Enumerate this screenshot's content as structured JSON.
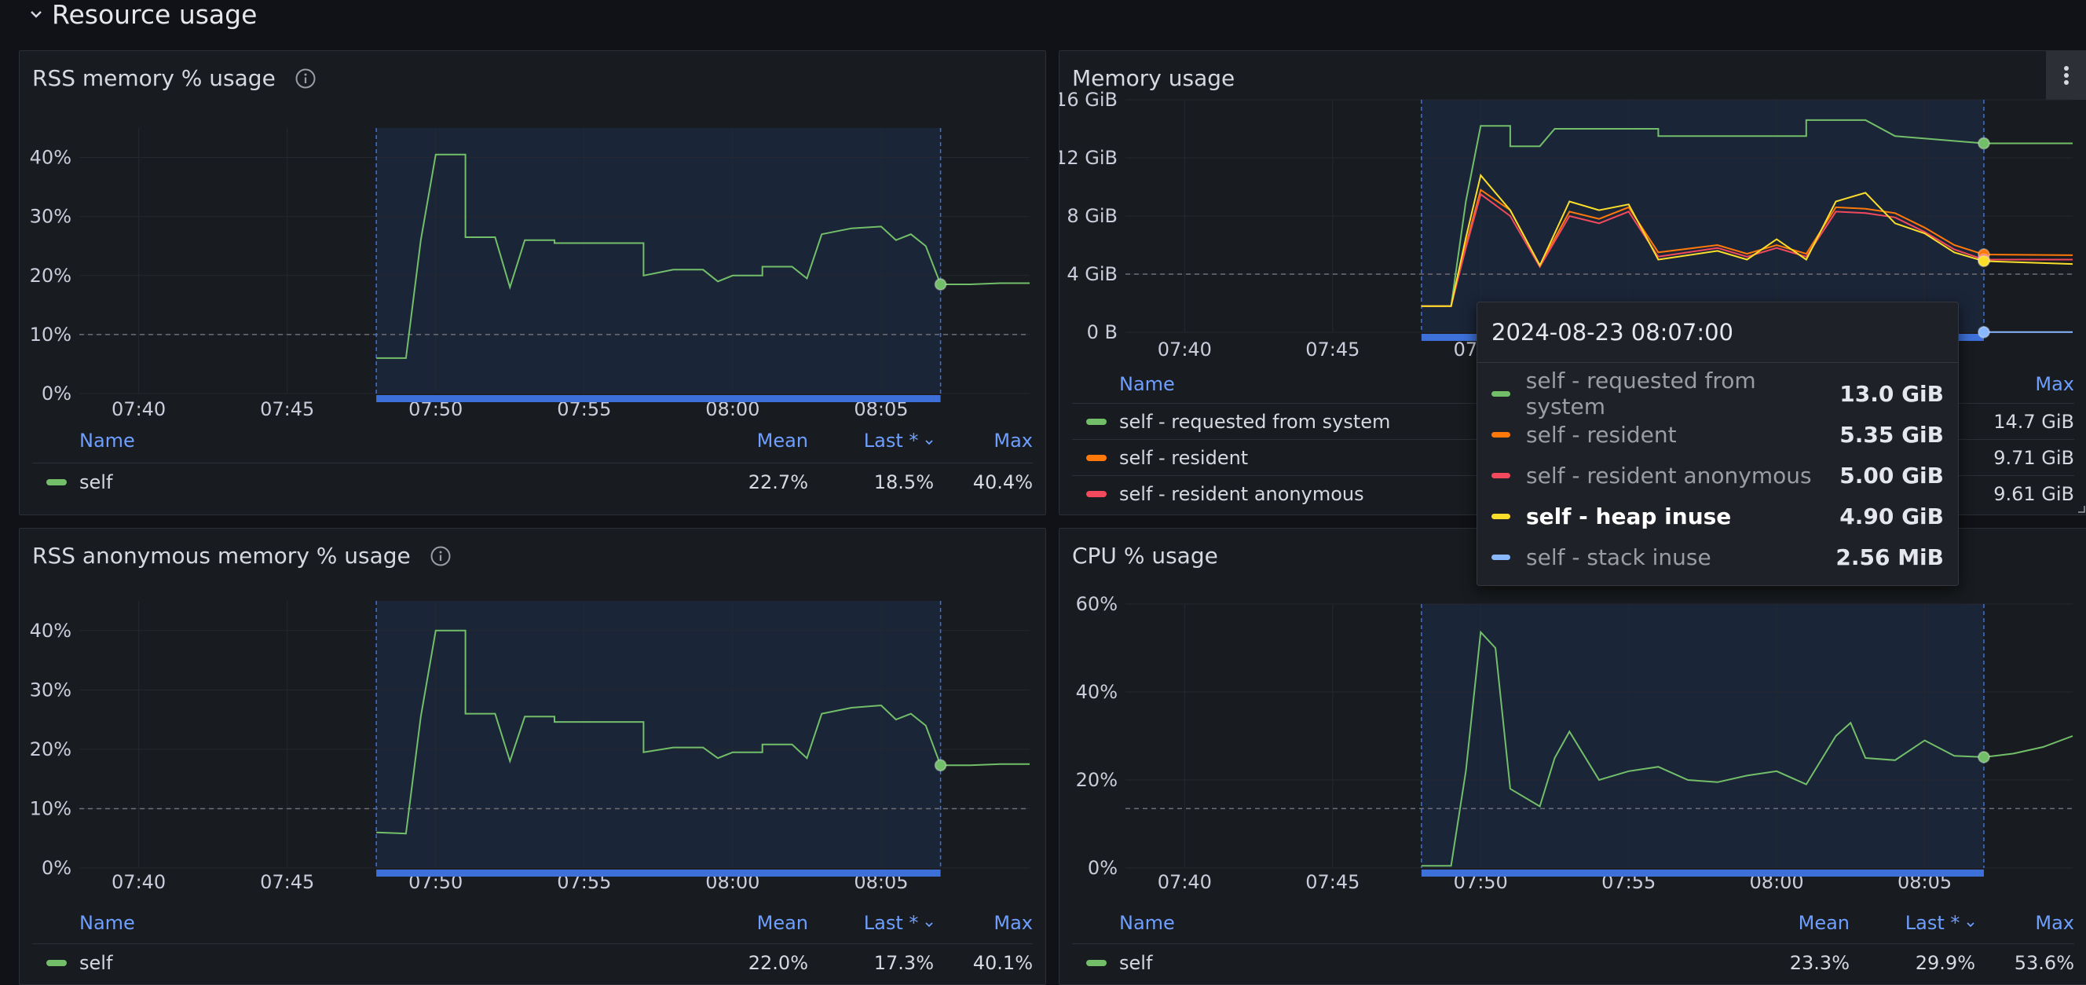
{
  "row": {
    "title": "Resource usage"
  },
  "tick_times": [
    "07:40",
    "07:45",
    "07:50",
    "07:55",
    "08:00",
    "08:05"
  ],
  "legend_cols": {
    "name": "Name",
    "mean": "Mean",
    "last": "Last *",
    "max": "Max"
  },
  "colors": {
    "green": "#73bf69",
    "orange": "#ff780a",
    "red": "#f2495c",
    "yellow": "#fade2a",
    "blue": "#8ab8ff",
    "accent": "#6e9fff",
    "bg": "#111217",
    "panel": "#181b1f"
  },
  "panels": {
    "rss": {
      "title": "RSS memory % usage",
      "legend": [
        {
          "name": "self",
          "color": "#73bf69",
          "mean": "22.7%",
          "last": "18.5%",
          "max": "40.4%"
        }
      ]
    },
    "mem": {
      "title": "Memory usage",
      "legend": [
        {
          "name": "self - requested from system",
          "color": "#73bf69",
          "max": "14.7 GiB"
        },
        {
          "name": "self - resident",
          "color": "#ff780a",
          "max": "9.71 GiB"
        },
        {
          "name": "self - resident anonymous",
          "color": "#f2495c",
          "max": "9.61 GiB"
        }
      ],
      "tooltip": {
        "time": "2024-08-23 08:07:00",
        "rows": [
          {
            "name": "self - requested from system",
            "value": "13.0 GiB",
            "color": "#73bf69"
          },
          {
            "name": "self - resident",
            "value": "5.35 GiB",
            "color": "#ff780a"
          },
          {
            "name": "self - resident anonymous",
            "value": "5.00 GiB",
            "color": "#f2495c"
          },
          {
            "name": "self - heap inuse",
            "value": "4.90 GiB",
            "color": "#fade2a"
          },
          {
            "name": "self - stack inuse",
            "value": "2.56 MiB",
            "color": "#8ab8ff"
          }
        ]
      }
    },
    "anon": {
      "title": "RSS anonymous memory % usage",
      "legend": [
        {
          "name": "self",
          "color": "#73bf69",
          "mean": "22.0%",
          "last": "17.3%",
          "max": "40.1%"
        }
      ]
    },
    "cpu": {
      "title": "CPU % usage",
      "legend": [
        {
          "name": "self",
          "color": "#73bf69",
          "mean": "23.3%",
          "last": "29.9%",
          "max": "53.6%"
        }
      ]
    }
  },
  "chart_data": [
    {
      "type": "line",
      "title": "RSS memory % usage",
      "y_ticks": [
        "0%",
        "10%",
        "20%",
        "30%",
        "40%"
      ],
      "ylim": [
        0,
        45
      ],
      "threshold": 10,
      "selection": [
        "07:48",
        "08:07"
      ],
      "grid": true,
      "legend_placement": "bottom",
      "series": [
        {
          "name": "self",
          "color": "#73bf69",
          "points": [
            [
              "07:48",
              6
            ],
            [
              "07:49",
              6
            ],
            [
              "07:49:30",
              26
            ],
            [
              "07:50",
              40.5
            ],
            [
              "07:51",
              40.5
            ],
            [
              "07:51",
              26.5
            ],
            [
              "07:52",
              26.5
            ],
            [
              "07:52:30",
              18
            ],
            [
              "07:53",
              26
            ],
            [
              "07:54",
              26
            ],
            [
              "07:54",
              25.5
            ],
            [
              "07:57",
              25.5
            ],
            [
              "07:57",
              20
            ],
            [
              "07:58",
              21
            ],
            [
              "07:59",
              21
            ],
            [
              "07:59:30",
              19
            ],
            [
              "08:00",
              20
            ],
            [
              "08:01",
              20
            ],
            [
              "08:01",
              21.5
            ],
            [
              "08:02",
              21.5
            ],
            [
              "08:02:30",
              19.5
            ],
            [
              "08:03",
              27
            ],
            [
              "08:04",
              28
            ],
            [
              "08:05",
              28.3
            ],
            [
              "08:05:30",
              26
            ],
            [
              "08:06",
              27
            ],
            [
              "08:06:30",
              25
            ],
            [
              "08:07",
              18.5
            ],
            [
              "08:08",
              18.5
            ],
            [
              "08:09",
              18.7
            ],
            [
              "08:10",
              18.7
            ]
          ]
        }
      ]
    },
    {
      "type": "line",
      "title": "Memory usage",
      "y_ticks": [
        "0 B",
        "4 GiB",
        "8 GiB",
        "12 GiB",
        "16 GiB"
      ],
      "ylim": [
        0,
        16
      ],
      "threshold": 4,
      "selection": [
        "07:48",
        "08:07"
      ],
      "grid": true,
      "legend_placement": "bottom",
      "series": [
        {
          "name": "self - requested from system",
          "color": "#73bf69",
          "points": [
            [
              "07:48",
              1.8
            ],
            [
              "07:49",
              1.8
            ],
            [
              "07:49:30",
              9
            ],
            [
              "07:50",
              14.2
            ],
            [
              "07:51",
              14.2
            ],
            [
              "07:51",
              12.8
            ],
            [
              "07:52",
              12.8
            ],
            [
              "07:52:30",
              14
            ],
            [
              "07:53",
              14
            ],
            [
              "07:56",
              14
            ],
            [
              "07:56",
              13.5
            ],
            [
              "08:01",
              13.5
            ],
            [
              "08:01",
              14.6
            ],
            [
              "08:03",
              14.6
            ],
            [
              "08:04",
              13.5
            ],
            [
              "08:07",
              13
            ],
            [
              "08:10",
              13
            ]
          ]
        },
        {
          "name": "self - resident",
          "color": "#ff780a",
          "points": [
            [
              "07:48",
              1.8
            ],
            [
              "07:49",
              1.8
            ],
            [
              "07:49:30",
              6
            ],
            [
              "07:50",
              9.8
            ],
            [
              "07:51",
              8.4
            ],
            [
              "07:52",
              4.6
            ],
            [
              "07:53",
              8.3
            ],
            [
              "07:54",
              7.8
            ],
            [
              "07:55",
              8.6
            ],
            [
              "07:56",
              5.5
            ],
            [
              "07:58",
              6
            ],
            [
              "07:59",
              5.4
            ],
            [
              "08:00",
              6
            ],
            [
              "08:01",
              5.4
            ],
            [
              "08:02",
              8.6
            ],
            [
              "08:03",
              8.5
            ],
            [
              "08:04",
              8.2
            ],
            [
              "08:05",
              7.2
            ],
            [
              "08:06",
              6
            ],
            [
              "08:07",
              5.35
            ],
            [
              "08:10",
              5.3
            ]
          ]
        },
        {
          "name": "self - resident anonymous",
          "color": "#f2495c",
          "points": [
            [
              "07:48",
              1.8
            ],
            [
              "07:49",
              1.8
            ],
            [
              "07:49:30",
              5.8
            ],
            [
              "07:50",
              9.5
            ],
            [
              "07:51",
              8
            ],
            [
              "07:52",
              4.5
            ],
            [
              "07:53",
              8
            ],
            [
              "07:54",
              7.5
            ],
            [
              "07:55",
              8.3
            ],
            [
              "07:56",
              5.2
            ],
            [
              "07:58",
              5.8
            ],
            [
              "07:59",
              5.2
            ],
            [
              "08:00",
              5.8
            ],
            [
              "08:01",
              5.2
            ],
            [
              "08:02",
              8.3
            ],
            [
              "08:03",
              8.2
            ],
            [
              "08:04",
              7.9
            ],
            [
              "08:05",
              6.9
            ],
            [
              "08:06",
              5.7
            ],
            [
              "08:07",
              5
            ],
            [
              "08:10",
              5
            ]
          ]
        },
        {
          "name": "self - heap inuse",
          "color": "#fade2a",
          "points": [
            [
              "07:48",
              1.8
            ],
            [
              "07:49",
              1.8
            ],
            [
              "07:49:30",
              6.5
            ],
            [
              "07:50",
              10.8
            ],
            [
              "07:51",
              8.4
            ],
            [
              "07:52",
              4.6
            ],
            [
              "07:53",
              9
            ],
            [
              "07:54",
              8.4
            ],
            [
              "07:55",
              8.8
            ],
            [
              "07:56",
              5
            ],
            [
              "07:58",
              5.6
            ],
            [
              "07:59",
              5
            ],
            [
              "08:00",
              6.4
            ],
            [
              "08:01",
              5
            ],
            [
              "08:02",
              9
            ],
            [
              "08:03",
              9.6
            ],
            [
              "08:04",
              7.5
            ],
            [
              "08:05",
              6.8
            ],
            [
              "08:06",
              5.5
            ],
            [
              "08:07",
              4.9
            ],
            [
              "08:10",
              4.7
            ]
          ]
        },
        {
          "name": "self - stack inuse",
          "color": "#8ab8ff",
          "points": [
            [
              "08:07",
              0.01
            ],
            [
              "08:10",
              0.01
            ]
          ]
        }
      ]
    },
    {
      "type": "line",
      "title": "RSS anonymous memory % usage",
      "y_ticks": [
        "0%",
        "10%",
        "20%",
        "30%",
        "40%"
      ],
      "ylim": [
        0,
        45
      ],
      "threshold": 10,
      "selection": [
        "07:48",
        "08:07"
      ],
      "grid": true,
      "legend_placement": "bottom",
      "series": [
        {
          "name": "self",
          "color": "#73bf69",
          "points": [
            [
              "07:48",
              6
            ],
            [
              "07:49",
              5.8
            ],
            [
              "07:49:30",
              25.5
            ],
            [
              "07:50",
              40
            ],
            [
              "07:51",
              40
            ],
            [
              "07:51",
              26
            ],
            [
              "07:52",
              26
            ],
            [
              "07:52:30",
              18
            ],
            [
              "07:53",
              25.5
            ],
            [
              "07:54",
              25.5
            ],
            [
              "07:54",
              24.6
            ],
            [
              "07:57",
              24.6
            ],
            [
              "07:57",
              19.5
            ],
            [
              "07:58",
              20.3
            ],
            [
              "07:59",
              20.3
            ],
            [
              "07:59:30",
              18.5
            ],
            [
              "08:00",
              19.5
            ],
            [
              "08:01",
              19.5
            ],
            [
              "08:01",
              20.8
            ],
            [
              "08:02",
              20.8
            ],
            [
              "08:02:30",
              18.5
            ],
            [
              "08:03",
              26
            ],
            [
              "08:04",
              27
            ],
            [
              "08:05",
              27.4
            ],
            [
              "08:05:30",
              25
            ],
            [
              "08:06",
              26
            ],
            [
              "08:06:30",
              24
            ],
            [
              "08:07",
              17.3
            ],
            [
              "08:08",
              17.3
            ],
            [
              "08:09",
              17.5
            ],
            [
              "08:10",
              17.5
            ]
          ]
        }
      ]
    },
    {
      "type": "line",
      "title": "CPU % usage",
      "y_ticks": [
        "0%",
        "20%",
        "40%",
        "60%"
      ],
      "ylim": [
        0,
        60
      ],
      "threshold": 13.5,
      "selection": [
        "07:48",
        "08:07"
      ],
      "grid": true,
      "legend_placement": "bottom",
      "series": [
        {
          "name": "self",
          "color": "#73bf69",
          "points": [
            [
              "07:48",
              0.5
            ],
            [
              "07:49",
              0.5
            ],
            [
              "07:49:30",
              22
            ],
            [
              "07:50",
              53.6
            ],
            [
              "07:50:30",
              50
            ],
            [
              "07:51",
              18
            ],
            [
              "07:52",
              14
            ],
            [
              "07:52:30",
              25
            ],
            [
              "07:53",
              31
            ],
            [
              "07:54",
              20
            ],
            [
              "07:55",
              22
            ],
            [
              "07:56",
              23
            ],
            [
              "07:57",
              20
            ],
            [
              "07:58",
              19.5
            ],
            [
              "07:59",
              21
            ],
            [
              "08:00",
              22
            ],
            [
              "08:01",
              19
            ],
            [
              "08:02",
              30
            ],
            [
              "08:02:30",
              33
            ],
            [
              "08:03",
              25
            ],
            [
              "08:04",
              24.5
            ],
            [
              "08:05",
              29
            ],
            [
              "08:06",
              25.5
            ],
            [
              "08:07",
              25.2
            ],
            [
              "08:08",
              26
            ],
            [
              "08:09",
              27.5
            ],
            [
              "08:10",
              30
            ]
          ]
        }
      ]
    }
  ]
}
